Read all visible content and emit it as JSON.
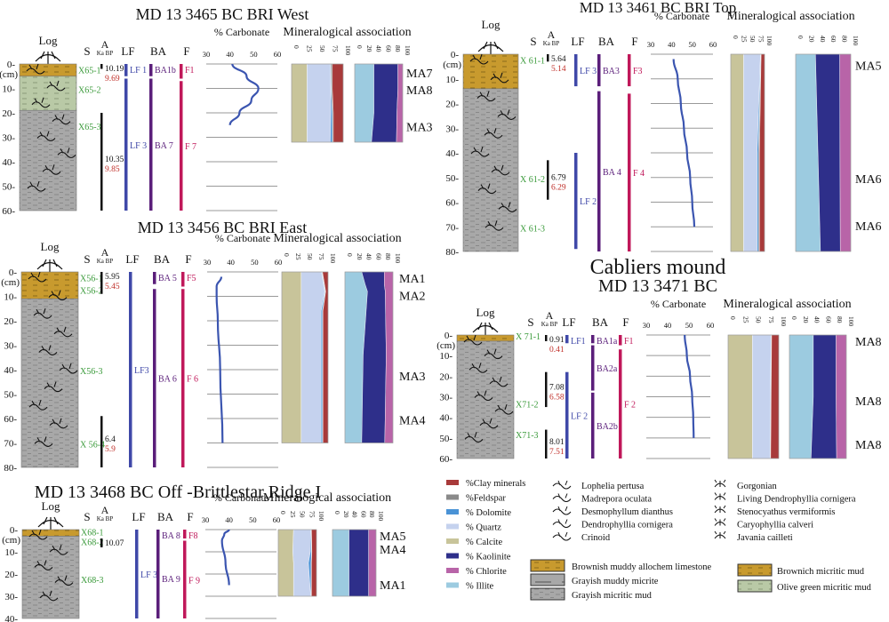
{
  "colors": {
    "calcite": "#c8c49a",
    "quartz": "#c5d2ee",
    "dolomite": "#4a93d6",
    "feldspar": "#8a8a8a",
    "clay": "#a83a3a",
    "clay_dark": "#7a2a2a",
    "illite": "#9ccbe0",
    "kaolinite": "#2e2f8a",
    "chlorite": "#b864a8",
    "lf": "#3f48a8",
    "ba": "#5a1e7a",
    "f": "#c0185a",
    "sample": "#3a9a3a",
    "age_cal": "#c0302a",
    "curve": "#3b55b0",
    "brown": "#c89a2e",
    "olive": "#b9c9a6",
    "gray": "#a8a8a8"
  },
  "common": {
    "log_label": "Log",
    "s_label": "S",
    "a_label": "A",
    "a_sub": "Ka BP",
    "lf_label": "LF",
    "ba_label": "BA",
    "f_label": "F",
    "carb_label": "% Carbonate",
    "min_label": "Mineralogical association",
    "cm_label": "(cm)",
    "carb_ticks": [
      "30",
      "40",
      "50",
      "60"
    ],
    "min1_ticks": [
      "0",
      "25",
      "50",
      "75",
      "100"
    ],
    "min2_ticks": [
      "0",
      "20",
      "40",
      "60",
      "80",
      "100"
    ]
  },
  "cores": [
    {
      "id": "3465",
      "title": "MD 13 3465 BC  BRI West",
      "max_depth": 60,
      "depth_ticks": [
        0,
        10,
        20,
        30,
        40,
        50,
        60
      ],
      "layers": [
        {
          "from": 0,
          "to": 5,
          "type": "brown"
        },
        {
          "from": 5,
          "to": 19,
          "type": "olive"
        },
        {
          "from": 19,
          "to": 60,
          "type": "gray"
        }
      ],
      "samples": [
        {
          "label": "X65-1",
          "depth": 2
        },
        {
          "label": "X65-2",
          "depth": 10
        },
        {
          "label": "X65-3",
          "depth": 25
        }
      ],
      "ages": [
        {
          "from": 0,
          "to": 2,
          "age": "10.19",
          "cal": "9.69"
        },
        {
          "from": 20,
          "to": 60,
          "age": "10.35",
          "cal": "9.85"
        }
      ],
      "lf": [
        {
          "from": 0,
          "to": 5,
          "label": "LF 1"
        },
        {
          "from": 6,
          "to": 60,
          "label": "LF 3"
        }
      ],
      "ba": [
        {
          "from": 0,
          "to": 5,
          "label": "BA1b"
        },
        {
          "from": 6,
          "to": 60,
          "label": "BA 7"
        }
      ],
      "f": [
        {
          "from": 0,
          "to": 6,
          "label": "F1"
        },
        {
          "from": 7,
          "to": 60,
          "label": "F 7"
        }
      ],
      "carbonate": {
        "depth": [
          0,
          5,
          10,
          15,
          20,
          25
        ],
        "value": [
          41,
          47,
          52,
          49,
          44,
          40
        ]
      },
      "min_depth": 32,
      "minerals": {
        "depth": [
          0,
          10,
          20,
          32
        ],
        "calcite": [
          30,
          30,
          30,
          30
        ],
        "quartz": [
          45,
          46,
          46,
          45
        ],
        "dolomite": [
          1,
          1,
          3,
          4
        ],
        "feldspar": [
          3,
          2,
          2,
          2
        ],
        "clay": [
          21,
          21,
          19,
          19
        ]
      },
      "clays": {
        "depth": [
          0,
          10,
          20,
          32
        ],
        "illite": [
          40,
          40,
          40,
          35
        ],
        "kaolinite": [
          50,
          50,
          48,
          52
        ],
        "chlorite": [
          10,
          10,
          12,
          13
        ]
      },
      "ma": [
        {
          "label": "MA7",
          "depth": 1
        },
        {
          "label": "MA8",
          "depth": 8
        },
        {
          "label": "MA3",
          "depth": 23
        }
      ]
    },
    {
      "id": "3456",
      "title": "MD 13 3456 BC  BRI East",
      "max_depth": 80,
      "depth_ticks": [
        0,
        10,
        20,
        30,
        40,
        50,
        60,
        70,
        80
      ],
      "layers": [
        {
          "from": 0,
          "to": 11,
          "type": "brown"
        },
        {
          "from": 11,
          "to": 80,
          "type": "gray"
        }
      ],
      "samples": [
        {
          "label": "X56-1",
          "depth": 2
        },
        {
          "label": "X56-2",
          "depth": 7
        },
        {
          "label": "X56-3",
          "depth": 40
        },
        {
          "label": "X 56-4",
          "depth": 70
        }
      ],
      "ages": [
        {
          "from": 0,
          "to": 9,
          "age": "5.95",
          "cal": "5.45"
        },
        {
          "from": 59,
          "to": 80,
          "age": "6.4",
          "cal": "5.9"
        }
      ],
      "lf": [
        {
          "from": 0,
          "to": 80,
          "label": "LF3"
        }
      ],
      "ba": [
        {
          "from": 0,
          "to": 5,
          "label": "BA 5"
        },
        {
          "from": 7,
          "to": 80,
          "label": "BA 6"
        }
      ],
      "f": [
        {
          "from": 0,
          "to": 6,
          "label": "F5"
        },
        {
          "from": 7,
          "to": 80,
          "label": "F 6"
        }
      ],
      "carbonate": {
        "depth": [
          2,
          6,
          10,
          20,
          40,
          70
        ],
        "value": [
          36,
          34,
          34,
          34.5,
          35.5,
          36.5
        ]
      },
      "min_depth": 70,
      "minerals": {
        "depth": [
          0,
          8,
          16,
          70
        ],
        "calcite": [
          42,
          42,
          42,
          42
        ],
        "quartz": [
          44,
          51,
          43,
          43
        ],
        "dolomite": [
          1,
          1,
          3,
          3
        ],
        "feldspar": [
          1,
          1,
          1,
          1
        ],
        "clay": [
          12,
          5,
          11,
          11
        ]
      },
      "clays": {
        "depth": [
          0,
          5,
          8,
          34,
          70
        ],
        "illite": [
          35,
          42,
          47,
          38,
          35
        ],
        "kaolinite": [
          47,
          40,
          37,
          48,
          48
        ],
        "chlorite": [
          18,
          18,
          16,
          14,
          17
        ]
      },
      "ma": [
        {
          "label": "MA1",
          "depth": 0
        },
        {
          "label": "MA2",
          "depth": 7
        },
        {
          "label": "MA3",
          "depth": 40
        },
        {
          "label": "MA4",
          "depth": 58
        }
      ]
    },
    {
      "id": "3468",
      "title": "MD 13 3468 BC Off -Brittlestar Ridge I",
      "max_depth": 40,
      "depth_ticks": [
        0,
        10,
        20,
        30,
        40
      ],
      "layers": [
        {
          "from": 0,
          "to": 3,
          "type": "brown"
        },
        {
          "from": 3,
          "to": 40,
          "type": "gray"
        }
      ],
      "samples": [
        {
          "label": "X68-1",
          "depth": 0.5
        },
        {
          "label": "X68-2",
          "depth": 5
        },
        {
          "label": "X68-3",
          "depth": 22
        }
      ],
      "ages": [
        {
          "from": 4,
          "to": 8,
          "age": "10.07",
          "cal": ""
        }
      ],
      "lf": [
        {
          "from": 0,
          "to": 40,
          "label": "LF 3"
        }
      ],
      "ba": [
        {
          "from": 0,
          "to": 4,
          "label": "BA 8"
        },
        {
          "from": 4,
          "to": 40,
          "label": "BA 9"
        }
      ],
      "f": [
        {
          "from": 0,
          "to": 4,
          "label": "F8"
        },
        {
          "from": 5,
          "to": 40,
          "label": "F 9"
        }
      ],
      "carbonate": {
        "depth": [
          0,
          2,
          5,
          15,
          25
        ],
        "value": [
          40,
          38,
          37,
          38.5,
          40
        ]
      },
      "min_depth": 30,
      "minerals": {
        "depth": [
          0,
          10,
          15,
          30
        ],
        "calcite": [
          40,
          38,
          40,
          40
        ],
        "quartz": [
          45,
          46,
          39,
          45
        ],
        "dolomite": [
          1,
          3,
          7,
          1
        ],
        "feldspar": [
          1,
          1,
          1,
          1
        ],
        "clay": [
          13,
          12,
          13,
          13
        ]
      },
      "clays": {
        "depth": [
          0,
          5,
          30
        ],
        "illite": [
          38,
          38,
          38
        ],
        "kaolinite": [
          45,
          45,
          45
        ],
        "chlorite": [
          17,
          17,
          17
        ]
      },
      "ma": [
        {
          "label": "MA5",
          "depth": 0
        },
        {
          "label": "MA4",
          "depth": 6
        },
        {
          "label": "MA1",
          "depth": 22
        }
      ]
    },
    {
      "id": "3461",
      "title": "MD 13 3461 BC BRI Top",
      "max_depth": 80,
      "depth_ticks": [
        0,
        10,
        20,
        30,
        40,
        50,
        60,
        70,
        80
      ],
      "layers": [
        {
          "from": 0,
          "to": 14,
          "type": "brown"
        },
        {
          "from": 14,
          "to": 80,
          "type": "gray"
        }
      ],
      "samples": [
        {
          "label": "X 61-1",
          "depth": 2
        },
        {
          "label": "X 61-2",
          "depth": 50
        },
        {
          "label": "X 61-3",
          "depth": 70
        }
      ],
      "ages": [
        {
          "from": 0,
          "to": 3,
          "age": "5.64",
          "cal": "5.14"
        },
        {
          "from": 43,
          "to": 59,
          "age": "6.79",
          "cal": "6.29"
        }
      ],
      "lf": [
        {
          "from": 0,
          "to": 13,
          "label": "LF 3"
        },
        {
          "from": 40,
          "to": 79,
          "label": "LF 2"
        }
      ],
      "ba": [
        {
          "from": 0,
          "to": 13,
          "label": "BA3"
        },
        {
          "from": 15,
          "to": 80,
          "label": "BA 4"
        }
      ],
      "f": [
        {
          "from": 0,
          "to": 13,
          "label": "F3"
        },
        {
          "from": 16,
          "to": 80,
          "label": "F 4"
        }
      ],
      "carbonate": {
        "depth": [
          2,
          10,
          20,
          30,
          40,
          50,
          60,
          70
        ],
        "value": [
          41,
          43,
          44.5,
          46,
          47.5,
          49,
          50,
          51
        ]
      },
      "min_depth": 80,
      "minerals": {
        "depth": [
          0,
          40,
          80
        ],
        "calcite": [
          38,
          38,
          38
        ],
        "quartz": [
          50,
          40,
          40
        ],
        "dolomite": [
          1,
          4,
          4
        ],
        "feldspar": [
          1,
          3,
          3
        ],
        "clay": [
          10,
          15,
          15
        ]
      },
      "clays": {
        "depth": [
          0,
          80
        ],
        "illite": [
          36,
          45
        ],
        "kaolinite": [
          44,
          36
        ],
        "chlorite": [
          20,
          19
        ]
      },
      "ma": [
        {
          "label": "MA5",
          "depth": 2
        },
        {
          "label": "MA6",
          "depth": 48
        },
        {
          "label": "MA6",
          "depth": 67
        }
      ]
    },
    {
      "id": "3471",
      "title": "MD 13 3471 BC",
      "supertitle": "Cabliers mound",
      "max_depth": 60,
      "depth_ticks": [
        0,
        10,
        20,
        30,
        40,
        50,
        60
      ],
      "layers": [
        {
          "from": 0,
          "to": 3,
          "type": "brown"
        },
        {
          "from": 3,
          "to": 60,
          "type": "gray"
        }
      ],
      "samples": [
        {
          "label": "X 71-1",
          "depth": 0
        },
        {
          "label": "X71-2",
          "depth": 33
        },
        {
          "label": "X71-3",
          "depth": 48
        }
      ],
      "ages": [
        {
          "from": 0,
          "to": 3,
          "age": "0.91",
          "cal": "0.41"
        },
        {
          "from": 18,
          "to": 35,
          "age": "7.08",
          "cal": "6.58"
        },
        {
          "from": 46,
          "to": 62,
          "age": "8.01",
          "cal": "7.51"
        }
      ],
      "lf": [
        {
          "from": 0,
          "to": 4,
          "label": "LF1"
        },
        {
          "from": 18,
          "to": 60,
          "label": "LF 2"
        }
      ],
      "ba": [
        {
          "from": 0,
          "to": 4,
          "label": "BA1a"
        },
        {
          "from": 5,
          "to": 27,
          "label": "BA2a"
        },
        {
          "from": 28,
          "to": 60,
          "label": "BA2b"
        }
      ],
      "f": [
        {
          "from": 0,
          "to": 5,
          "label": "F1"
        },
        {
          "from": 7,
          "to": 60,
          "label": "F 2"
        }
      ],
      "carbonate": {
        "depth": [
          0,
          10,
          20,
          30,
          40,
          50
        ],
        "value": [
          48,
          49,
          50.5,
          51.5,
          52,
          52.2
        ]
      },
      "min_depth": 60,
      "minerals": {
        "depth": [
          0,
          60
        ],
        "calcite": [
          48,
          48
        ],
        "quartz": [
          37,
          35
        ],
        "dolomite": [
          0,
          0
        ],
        "feldspar": [
          1,
          1
        ],
        "clay": [
          14,
          16
        ]
      },
      "clays": {
        "depth": [
          0,
          30,
          60
        ],
        "illite": [
          42,
          42,
          38
        ],
        "kaolinite": [
          40,
          40,
          45
        ],
        "chlorite": [
          18,
          18,
          17
        ]
      },
      "ma": [
        {
          "label": "MA8",
          "depth": 0
        },
        {
          "label": "MA8",
          "depth": 29
        },
        {
          "label": "MA8",
          "depth": 50
        }
      ]
    }
  ],
  "legend": {
    "minerals": [
      {
        "label": "%Clay minerals",
        "key": "clay"
      },
      {
        "label": "%Feldspar",
        "key": "feldspar"
      },
      {
        "label": "% Dolomite",
        "key": "dolomite"
      },
      {
        "label": "% Quartz",
        "key": "quartz"
      },
      {
        "label": "% Calcite",
        "key": "calcite"
      },
      {
        "label": "% Kaolinite",
        "key": "kaolinite"
      },
      {
        "label": "% Chlorite",
        "key": "chlorite"
      },
      {
        "label": "% Illite",
        "key": "illite"
      }
    ],
    "fauna_left": [
      "Lophelia pertusa",
      "Madrepora oculata",
      "Desmophyllum dianthus",
      "Dendrophyllia cornigera",
      "Crinoid"
    ],
    "fauna_right": [
      "Gorgonian",
      "Living Dendrophyllia cornigera",
      "Stenocyathus vermiformis",
      "Caryophyllia calveri",
      "Javania cailleti"
    ],
    "lithology_left": [
      {
        "label": "Brownish muddy allochem limestone",
        "type": "brown_allochem"
      },
      {
        "label": "Grayish muddy micrite",
        "type": "gray_muddy"
      },
      {
        "label": "Grayish micritic mud",
        "type": "gray"
      }
    ],
    "lithology_right": [
      {
        "label": "Brownich micritic mud",
        "type": "brown"
      },
      {
        "label": "Olive green micritic mud",
        "type": "olive"
      }
    ]
  }
}
